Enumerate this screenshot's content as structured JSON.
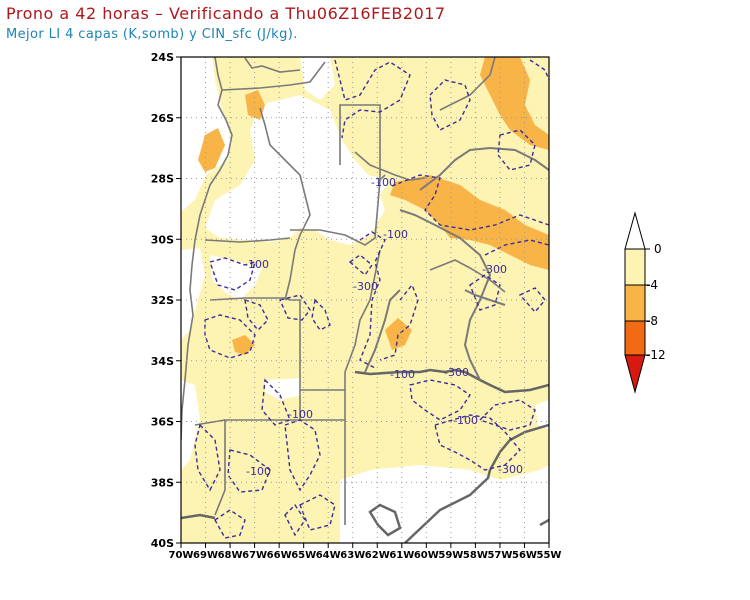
{
  "header": {
    "title": "Prono a 42 horas – Verificando a Thu06Z16FEB2017",
    "subtitle": "Mejor LI 4 capas (K,somb) y CIN_sfc (J/kg)."
  },
  "map": {
    "lat_ticks": [
      "24S",
      "26S",
      "28S",
      "30S",
      "32S",
      "34S",
      "36S",
      "38S",
      "40S"
    ],
    "lon_ticks": [
      "70W",
      "69W",
      "68W",
      "67W",
      "66W",
      "65W",
      "64W",
      "63W",
      "62W",
      "61W",
      "60W",
      "59W",
      "58W",
      "57W",
      "56W",
      "55W"
    ],
    "lon_range": [
      -70,
      -55
    ],
    "lat_range": [
      -40,
      -24
    ],
    "contour_labels": [
      "-100",
      "-100",
      "-100",
      "-300",
      "-100",
      "-100",
      "-300",
      "-100",
      "-100",
      "-300"
    ]
  },
  "legend": {
    "labels": [
      "0",
      "-4",
      "-8",
      "-12"
    ],
    "colors": [
      "#ffffff",
      "#fdf3b2",
      "#f9b447",
      "#f26a14",
      "#d7190f"
    ]
  },
  "colors": {
    "light": "#fdf3b2",
    "orange": "#f9b447",
    "contour": "#3a2d9a",
    "border": "#7a7a7a",
    "coast": "#666666",
    "title": "#b0171c",
    "subtitle": "#1c84b5"
  }
}
